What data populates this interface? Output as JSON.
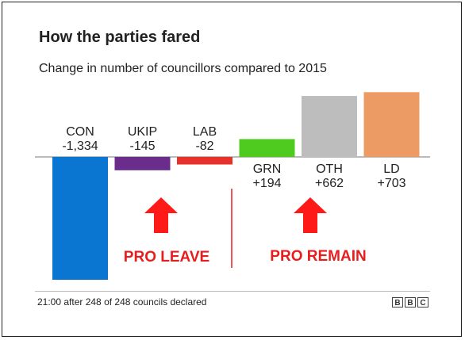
{
  "title": "How the parties fared",
  "subtitle": "Change in number of councillors compared to 2015",
  "footer": "21:00 after 248 of 248 councils declared",
  "brand": [
    "B",
    "B",
    "C"
  ],
  "chart_data": {
    "type": "bar",
    "categories": [
      "CON",
      "UKIP",
      "LAB",
      "GRN",
      "OTH",
      "LD"
    ],
    "values": [
      -1334,
      -145,
      -82,
      194,
      662,
      703
    ],
    "value_labels": [
      "-1,334",
      "-145",
      "-82",
      "+194",
      "+662",
      "+703"
    ],
    "colors": [
      "#0b76d1",
      "#6b2d8c",
      "#e8312a",
      "#4fcb1f",
      "#bdbdbd",
      "#eb9b63"
    ],
    "title": "How the parties fared",
    "subtitle": "Change in number of councillors compared to 2015",
    "xlabel": "",
    "ylabel": "",
    "grid": false,
    "annotations": [
      {
        "text": "PRO LEAVE",
        "color": "#e81e1e",
        "applies_to": [
          "CON",
          "UKIP",
          "LAB"
        ]
      },
      {
        "text": "PRO REMAIN",
        "color": "#e81e1e",
        "applies_to": [
          "GRN",
          "OTH",
          "LD"
        ]
      }
    ]
  }
}
